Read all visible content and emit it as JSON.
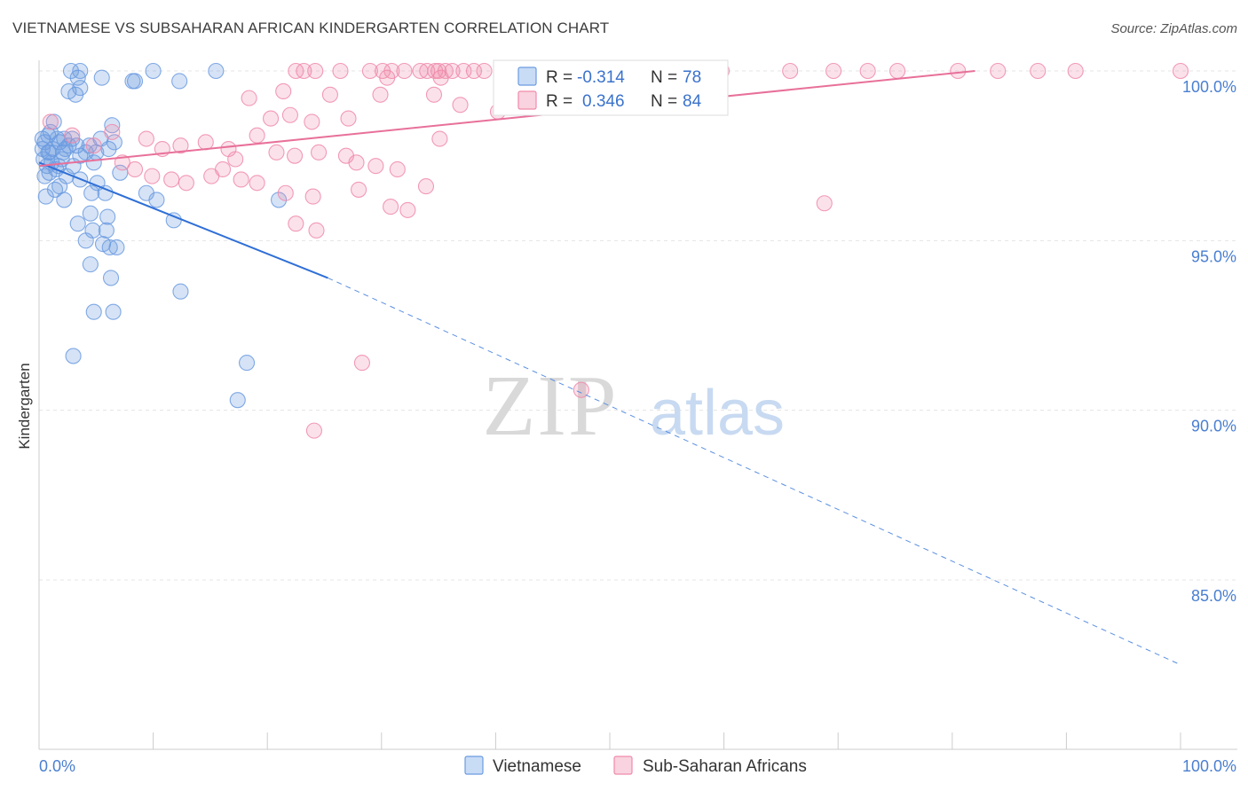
{
  "title": "VIETNAMESE VS SUBSAHARAN AFRICAN KINDERGARTEN CORRELATION CHART",
  "source": "Source: ZipAtlas.com",
  "watermark": {
    "zip": "ZIP",
    "atlas": "atlas"
  },
  "legend_box": {
    "rows": [
      {
        "r_label": "R = ",
        "r_value": "-0.314",
        "n_label": "N = ",
        "n_value": "78",
        "color": "#6b9be0"
      },
      {
        "r_label": "R = ",
        "r_value": "0.346",
        "n_label": "N = ",
        "n_value": "84",
        "color": "#f08aaa"
      }
    ]
  },
  "bottom_legend": [
    {
      "label": "Vietnamese",
      "color": "#6b9be0"
    },
    {
      "label": "Sub-Saharan Africans",
      "color": "#f08aaa"
    }
  ],
  "chart_data": {
    "type": "scatter",
    "xlabel": "",
    "ylabel": "Kindergarten",
    "xlim": [
      0,
      100
    ],
    "ylim": [
      80.5,
      100.7
    ],
    "x_tick_labels": [
      "0.0%",
      "100.0%"
    ],
    "y_ticks": [
      100,
      95,
      90,
      85
    ],
    "y_tick_labels": [
      "100.0%",
      "95.0%",
      "90.0%",
      "85.0%"
    ],
    "grid": true,
    "series": [
      {
        "name": "Vietnamese",
        "color": "#6b9be0",
        "r": -0.314,
        "n": 78,
        "trend": {
          "x0": 0,
          "y0": 97.3,
          "x1": 25.3,
          "y1": 93.9,
          "dash_to_x": 100,
          "dash_to_y": 82.5
        },
        "points": [
          [
            2.8,
            100
          ],
          [
            3.4,
            99.8
          ],
          [
            3.6,
            100
          ],
          [
            5.5,
            99.8
          ],
          [
            8.2,
            99.7
          ],
          [
            8.4,
            99.7
          ],
          [
            10.0,
            100
          ],
          [
            12.3,
            99.7
          ],
          [
            15.5,
            100
          ],
          [
            2.6,
            99.4
          ],
          [
            3.2,
            99.3
          ],
          [
            3.6,
            99.5
          ],
          [
            1.3,
            98.5
          ],
          [
            6.4,
            98.4
          ],
          [
            1.0,
            98.2
          ],
          [
            0.5,
            97.9
          ],
          [
            0.3,
            97.7
          ],
          [
            0.8,
            97.6
          ],
          [
            1.8,
            97.9
          ],
          [
            2.2,
            98.0
          ],
          [
            3.3,
            97.8
          ],
          [
            4.1,
            97.6
          ],
          [
            5.0,
            97.6
          ],
          [
            6.1,
            97.7
          ],
          [
            0.4,
            97.4
          ],
          [
            0.7,
            97.2
          ],
          [
            1.1,
            97.3
          ],
          [
            2.0,
            97.4
          ],
          [
            4.8,
            97.3
          ],
          [
            0.9,
            97.0
          ],
          [
            2.4,
            96.9
          ],
          [
            3.6,
            96.8
          ],
          [
            5.1,
            96.7
          ],
          [
            7.1,
            97.0
          ],
          [
            1.4,
            96.5
          ],
          [
            1.8,
            96.6
          ],
          [
            4.6,
            96.4
          ],
          [
            5.8,
            96.4
          ],
          [
            0.6,
            96.3
          ],
          [
            2.2,
            96.2
          ],
          [
            9.4,
            96.4
          ],
          [
            10.3,
            96.2
          ],
          [
            21.0,
            96.2
          ],
          [
            4.5,
            95.8
          ],
          [
            6.0,
            95.7
          ],
          [
            3.4,
            95.5
          ],
          [
            4.7,
            95.3
          ],
          [
            5.9,
            95.3
          ],
          [
            4.1,
            95.0
          ],
          [
            5.6,
            94.9
          ],
          [
            6.2,
            94.8
          ],
          [
            6.8,
            94.8
          ],
          [
            11.8,
            95.6
          ],
          [
            4.5,
            94.3
          ],
          [
            6.3,
            93.9
          ],
          [
            12.4,
            93.5
          ],
          [
            4.8,
            92.9
          ],
          [
            6.5,
            92.9
          ],
          [
            3.0,
            91.6
          ],
          [
            18.2,
            91.4
          ],
          [
            17.4,
            90.3
          ],
          [
            0.9,
            97.6
          ],
          [
            1.6,
            98.0
          ],
          [
            2.6,
            97.8
          ],
          [
            0.3,
            98.0
          ],
          [
            1.2,
            97.7
          ],
          [
            0.8,
            98.1
          ],
          [
            2.9,
            98.0
          ],
          [
            3.6,
            97.5
          ],
          [
            5.4,
            98.0
          ],
          [
            3.0,
            97.2
          ],
          [
            0.5,
            96.9
          ],
          [
            1.5,
            97.1
          ],
          [
            2.3,
            97.7
          ],
          [
            4.4,
            97.8
          ],
          [
            1.7,
            97.2
          ],
          [
            6.6,
            97.9
          ],
          [
            2.1,
            97.6
          ]
        ]
      },
      {
        "name": "Sub-Saharan Africans",
        "color": "#f08aaa",
        "r": 0.346,
        "n": 84,
        "trend": {
          "x0": 0,
          "y0": 97.2,
          "x1": 82,
          "y1": 100.0
        },
        "points": [
          [
            22.5,
            100
          ],
          [
            23.2,
            100
          ],
          [
            24.2,
            100
          ],
          [
            26.4,
            100
          ],
          [
            29.0,
            100
          ],
          [
            30.1,
            100
          ],
          [
            30.9,
            100
          ],
          [
            32.0,
            100
          ],
          [
            33.4,
            100
          ],
          [
            34.0,
            100
          ],
          [
            34.7,
            100
          ],
          [
            35.0,
            100
          ],
          [
            35.6,
            100
          ],
          [
            36.2,
            100
          ],
          [
            37.2,
            100
          ],
          [
            38.1,
            100
          ],
          [
            39.0,
            100
          ],
          [
            40.6,
            100
          ],
          [
            44.0,
            100
          ],
          [
            49.5,
            100
          ],
          [
            56.3,
            100
          ],
          [
            59.8,
            100
          ],
          [
            65.8,
            100
          ],
          [
            69.6,
            100
          ],
          [
            72.6,
            100
          ],
          [
            75.2,
            100
          ],
          [
            80.5,
            100
          ],
          [
            84.0,
            100
          ],
          [
            87.5,
            100
          ],
          [
            90.8,
            100
          ],
          [
            100,
            100
          ],
          [
            30.5,
            99.8
          ],
          [
            35.2,
            99.8
          ],
          [
            29.9,
            99.3
          ],
          [
            21.4,
            99.4
          ],
          [
            25.5,
            99.3
          ],
          [
            34.6,
            99.3
          ],
          [
            36.9,
            99.0
          ],
          [
            18.4,
            99.2
          ],
          [
            20.3,
            98.6
          ],
          [
            22.0,
            98.7
          ],
          [
            23.9,
            98.5
          ],
          [
            27.1,
            98.6
          ],
          [
            35.1,
            98.0
          ],
          [
            40.2,
            98.8
          ],
          [
            1.0,
            98.5
          ],
          [
            2.9,
            98.1
          ],
          [
            4.8,
            97.8
          ],
          [
            6.4,
            98.2
          ],
          [
            9.4,
            98.0
          ],
          [
            10.8,
            97.7
          ],
          [
            12.4,
            97.8
          ],
          [
            14.6,
            97.9
          ],
          [
            16.6,
            97.7
          ],
          [
            19.1,
            98.1
          ],
          [
            20.8,
            97.6
          ],
          [
            22.4,
            97.5
          ],
          [
            24.5,
            97.6
          ],
          [
            26.9,
            97.5
          ],
          [
            27.8,
            97.3
          ],
          [
            29.5,
            97.2
          ],
          [
            31.4,
            97.1
          ],
          [
            17.2,
            97.4
          ],
          [
            16.1,
            97.1
          ],
          [
            7.3,
            97.3
          ],
          [
            8.4,
            97.1
          ],
          [
            9.9,
            96.9
          ],
          [
            11.6,
            96.8
          ],
          [
            12.9,
            96.7
          ],
          [
            15.1,
            96.9
          ],
          [
            17.7,
            96.8
          ],
          [
            19.1,
            96.7
          ],
          [
            21.6,
            96.4
          ],
          [
            24.0,
            96.3
          ],
          [
            28.0,
            96.5
          ],
          [
            30.8,
            96.0
          ],
          [
            32.3,
            95.9
          ],
          [
            33.9,
            96.6
          ],
          [
            68.8,
            96.1
          ],
          [
            22.5,
            95.5
          ],
          [
            24.3,
            95.3
          ],
          [
            28.3,
            91.4
          ],
          [
            47.5,
            90.6
          ],
          [
            24.1,
            89.4
          ]
        ]
      }
    ]
  }
}
